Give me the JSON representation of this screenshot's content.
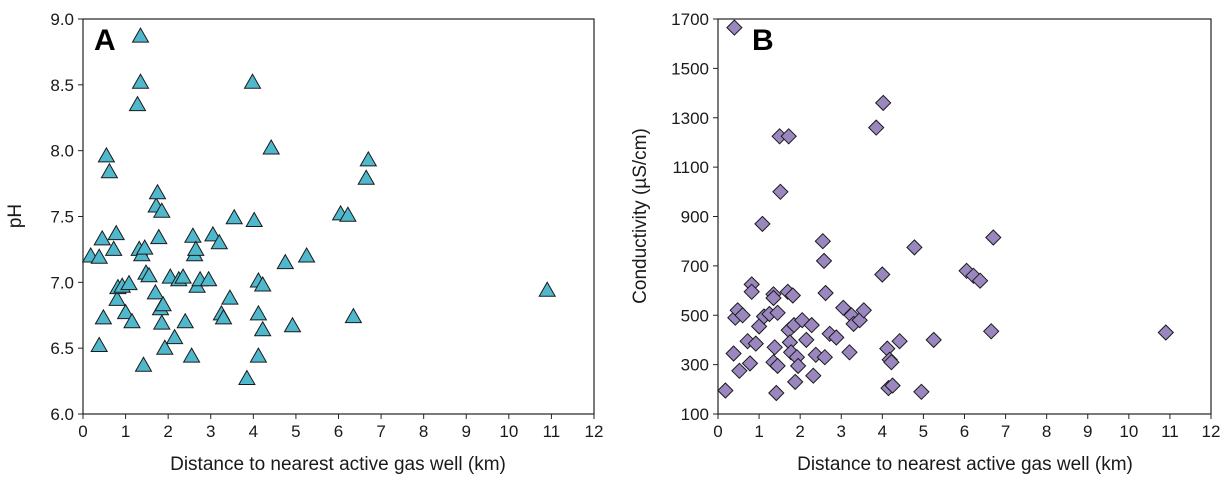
{
  "chart_data": [
    {
      "type": "scatter",
      "panel_label": "A",
      "xlabel": "Distance to nearest active gas well (km)",
      "ylabel": "pH",
      "xlim": [
        0,
        12
      ],
      "ylim": [
        6.0,
        9.0
      ],
      "xticks": [
        "0",
        "1",
        "2",
        "3",
        "4",
        "5",
        "6",
        "7",
        "8",
        "9",
        "10",
        "11",
        "12"
      ],
      "yticks": [
        "6.0",
        "6.5",
        "7.0",
        "7.5",
        "8.0",
        "8.5",
        "9.0"
      ],
      "marker": "triangle",
      "color": "#4fb8cc",
      "grid": false,
      "points": [
        [
          0.18,
          7.2
        ],
        [
          0.38,
          7.19
        ],
        [
          0.45,
          7.33
        ],
        [
          0.38,
          6.52
        ],
        [
          0.48,
          6.73
        ],
        [
          0.55,
          7.96
        ],
        [
          0.62,
          7.84
        ],
        [
          0.72,
          7.25
        ],
        [
          0.78,
          7.37
        ],
        [
          0.8,
          6.87
        ],
        [
          0.82,
          6.96
        ],
        [
          0.92,
          6.97
        ],
        [
          1.0,
          6.77
        ],
        [
          1.08,
          6.99
        ],
        [
          1.15,
          6.7
        ],
        [
          1.28,
          8.35
        ],
        [
          1.32,
          7.25
        ],
        [
          1.35,
          8.52
        ],
        [
          1.35,
          8.87
        ],
        [
          1.38,
          7.21
        ],
        [
          1.42,
          6.37
        ],
        [
          1.45,
          7.26
        ],
        [
          1.48,
          7.07
        ],
        [
          1.55,
          7.05
        ],
        [
          1.7,
          6.92
        ],
        [
          1.72,
          7.58
        ],
        [
          1.75,
          7.68
        ],
        [
          1.78,
          7.34
        ],
        [
          1.82,
          6.8
        ],
        [
          1.85,
          6.69
        ],
        [
          1.85,
          7.54
        ],
        [
          1.88,
          6.83
        ],
        [
          1.92,
          6.5
        ],
        [
          2.05,
          7.04
        ],
        [
          2.15,
          6.58
        ],
        [
          2.25,
          7.02
        ],
        [
          2.35,
          7.04
        ],
        [
          2.4,
          6.7
        ],
        [
          2.55,
          6.44
        ],
        [
          2.58,
          7.35
        ],
        [
          2.62,
          7.21
        ],
        [
          2.65,
          7.25
        ],
        [
          2.68,
          6.97
        ],
        [
          2.75,
          7.02
        ],
        [
          2.95,
          7.02
        ],
        [
          3.05,
          7.36
        ],
        [
          3.2,
          7.3
        ],
        [
          3.25,
          6.76
        ],
        [
          3.3,
          6.73
        ],
        [
          3.45,
          6.88
        ],
        [
          3.55,
          7.49
        ],
        [
          3.85,
          6.27
        ],
        [
          3.98,
          8.52
        ],
        [
          4.02,
          7.47
        ],
        [
          4.12,
          6.76
        ],
        [
          4.12,
          7.01
        ],
        [
          4.12,
          6.44
        ],
        [
          4.22,
          6.64
        ],
        [
          4.22,
          6.98
        ],
        [
          4.42,
          8.02
        ],
        [
          4.75,
          7.15
        ],
        [
          4.92,
          6.67
        ],
        [
          5.25,
          7.2
        ],
        [
          6.05,
          7.52
        ],
        [
          6.22,
          7.51
        ],
        [
          6.35,
          6.74
        ],
        [
          6.65,
          7.79
        ],
        [
          6.7,
          7.93
        ],
        [
          10.9,
          6.94
        ]
      ]
    },
    {
      "type": "scatter",
      "panel_label": "B",
      "xlabel": "Distance to nearest active gas well (km)",
      "ylabel": "Conductivity (µS/cm)",
      "xlim": [
        0,
        12
      ],
      "ylim": [
        100,
        1700
      ],
      "xticks": [
        "0",
        "1",
        "2",
        "3",
        "4",
        "5",
        "6",
        "7",
        "8",
        "9",
        "10",
        "11",
        "12"
      ],
      "yticks": [
        "100",
        "300",
        "500",
        "700",
        "900",
        "1100",
        "1300",
        "1500",
        "1700"
      ],
      "marker": "diamond",
      "color": "#9b87c0",
      "grid": false,
      "points": [
        [
          0.18,
          195
        ],
        [
          0.4,
          1665
        ],
        [
          0.38,
          345
        ],
        [
          0.42,
          490
        ],
        [
          0.48,
          520
        ],
        [
          0.52,
          275
        ],
        [
          0.6,
          500
        ],
        [
          0.72,
          395
        ],
        [
          0.78,
          305
        ],
        [
          0.82,
          625
        ],
        [
          0.82,
          595
        ],
        [
          0.92,
          385
        ],
        [
          1.0,
          455
        ],
        [
          1.08,
          870
        ],
        [
          1.12,
          495
        ],
        [
          1.25,
          505
        ],
        [
          1.35,
          585
        ],
        [
          1.35,
          570
        ],
        [
          1.35,
          310
        ],
        [
          1.38,
          370
        ],
        [
          1.42,
          185
        ],
        [
          1.45,
          295
        ],
        [
          1.45,
          510
        ],
        [
          1.5,
          1225
        ],
        [
          1.52,
          1000
        ],
        [
          1.7,
          595
        ],
        [
          1.72,
          1225
        ],
        [
          1.72,
          440
        ],
        [
          1.75,
          390
        ],
        [
          1.78,
          350
        ],
        [
          1.82,
          580
        ],
        [
          1.85,
          460
        ],
        [
          1.88,
          230
        ],
        [
          1.92,
          330
        ],
        [
          1.95,
          295
        ],
        [
          2.05,
          480
        ],
        [
          2.15,
          400
        ],
        [
          2.28,
          460
        ],
        [
          2.32,
          255
        ],
        [
          2.38,
          340
        ],
        [
          2.55,
          800
        ],
        [
          2.58,
          720
        ],
        [
          2.6,
          330
        ],
        [
          2.62,
          590
        ],
        [
          2.72,
          425
        ],
        [
          2.88,
          410
        ],
        [
          3.05,
          530
        ],
        [
          3.2,
          350
        ],
        [
          3.25,
          500
        ],
        [
          3.3,
          465
        ],
        [
          3.45,
          480
        ],
        [
          3.55,
          520
        ],
        [
          3.85,
          1260
        ],
        [
          4.0,
          665
        ],
        [
          4.02,
          1360
        ],
        [
          4.12,
          365
        ],
        [
          4.15,
          205
        ],
        [
          4.18,
          320
        ],
        [
          4.22,
          310
        ],
        [
          4.25,
          215
        ],
        [
          4.42,
          395
        ],
        [
          4.78,
          775
        ],
        [
          4.95,
          190
        ],
        [
          5.25,
          400
        ],
        [
          6.05,
          680
        ],
        [
          6.22,
          660
        ],
        [
          6.38,
          640
        ],
        [
          6.65,
          435
        ],
        [
          6.7,
          815
        ],
        [
          10.9,
          430
        ]
      ]
    }
  ]
}
